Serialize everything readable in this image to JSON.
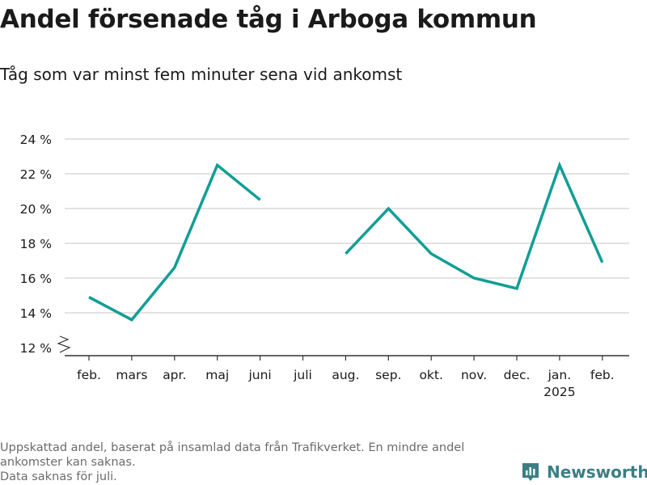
{
  "title": "Andel försenade tåg i Arboga kommun",
  "subtitle": "Tåg som var minst fem minuter sena vid ankomst",
  "footnote": [
    "Uppskattad andel, baserat på insamlad data från Trafikverket. En mindre andel",
    "ankomster kan saknas.",
    "Data saknas för juli."
  ],
  "brand": {
    "name": "Newsworthy",
    "color": "#3b7f85"
  },
  "colors": {
    "line": "#109e96",
    "grid": "#d9d9d9",
    "axis": "#333333"
  },
  "chart_data": {
    "type": "line",
    "categories": [
      "feb.",
      "mars",
      "apr.",
      "maj",
      "juni",
      "juli",
      "aug.",
      "sep.",
      "okt.",
      "nov.",
      "dec.",
      "jan.",
      "feb."
    ],
    "year_labels": [
      "",
      "",
      "",
      "",
      "",
      "",
      "",
      "",
      "",
      "",
      "",
      "2025",
      ""
    ],
    "series": [
      {
        "values": [
          14.9,
          13.6,
          16.6,
          22.5,
          20.5,
          null,
          17.4,
          20.0,
          17.4,
          16.0,
          15.4,
          22.5,
          16.9
        ]
      }
    ],
    "ylim": [
      12,
      24
    ],
    "yticks": [
      12,
      14,
      16,
      18,
      20,
      22,
      24
    ],
    "ytick_labels": [
      "12 %",
      "14 %",
      "16 %",
      "18 %",
      "20 %",
      "22 %",
      "24 %"
    ],
    "axis_break": true,
    "grid": true,
    "xlabel": "",
    "ylabel": ""
  }
}
